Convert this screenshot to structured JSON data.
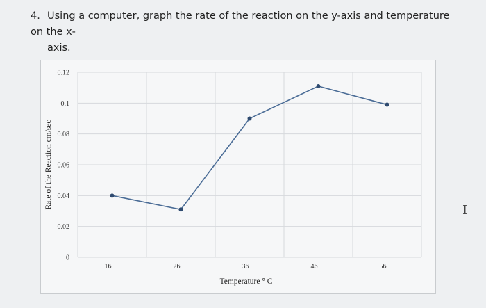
{
  "question": {
    "number": "4.",
    "line1": "Using a computer, graph the rate of the reaction on the y-axis and temperature on the x-",
    "line2": "axis."
  },
  "chart_data": {
    "type": "line",
    "x": [
      16,
      26,
      36,
      46,
      56
    ],
    "series": [
      {
        "values": [
          0.04,
          0.031,
          0.09,
          0.111,
          0.099
        ]
      }
    ],
    "x_tick_labels": [
      "16",
      "26",
      "36",
      "46",
      "56"
    ],
    "y_tick_labels": [
      "0",
      "0.02",
      "0.04",
      "0.06",
      "0.08",
      "0.1",
      "0.12"
    ],
    "y_ticks": [
      0,
      0.02,
      0.04,
      0.06,
      0.08,
      0.1,
      0.12
    ],
    "xlabel": "Temperature ° C",
    "ylabel": "Rate of the Reaction cm/sec",
    "ylim": [
      0,
      0.12
    ],
    "grid": true,
    "line_color": "#4a6c96",
    "marker_color": "#2f4b70"
  },
  "cursor_glyph": "I"
}
